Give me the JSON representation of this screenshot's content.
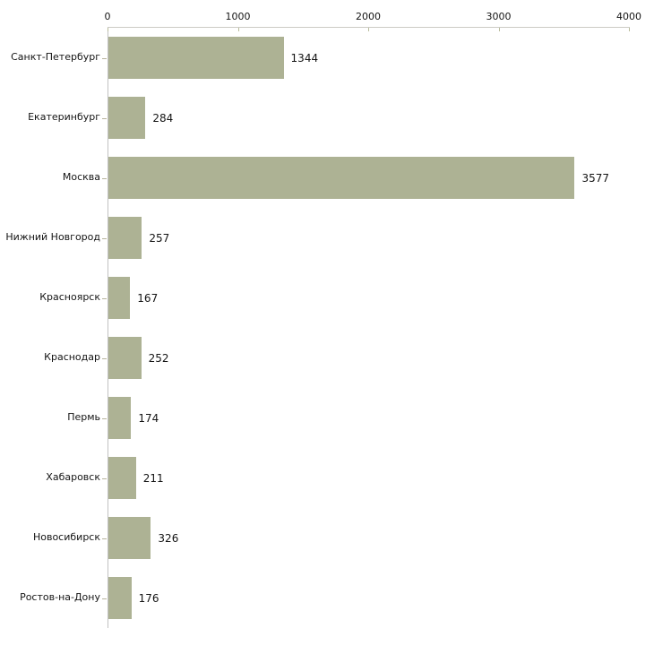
{
  "chart_data": {
    "type": "bar",
    "orientation": "horizontal",
    "title": "",
    "xlabel": "",
    "ylabel": "",
    "categories": [
      "Санкт-Петербург",
      "Екатеринбург",
      "Москва",
      "Нижний Новгород",
      "Красноярск",
      "Краснодар",
      "Пермь",
      "Хабаровск",
      "Новосибирск",
      "Ростов-на-Дону"
    ],
    "values": [
      1344,
      284,
      3577,
      257,
      167,
      252,
      174,
      211,
      326,
      176
    ],
    "xlim": [
      0,
      4000
    ],
    "x_ticks": [
      0,
      1000,
      2000,
      3000,
      4000
    ],
    "x_axis_position": "top",
    "grid": false,
    "legend": false,
    "colors": {
      "bar_fill": "#adb294",
      "axis_line": "#cccbc5",
      "y_axis_line": "#c2c2c2",
      "tick_mark": "#b9bc9b",
      "text": "#141414",
      "background": "#ffffff"
    }
  }
}
